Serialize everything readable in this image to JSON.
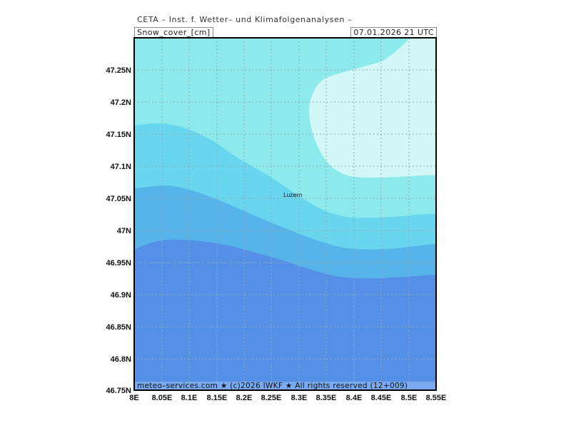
{
  "header": {
    "title": "CETA – Inst. f. Wetter– und Klimafolgenanalysen –",
    "field_label": "Snow_cover_[cm]",
    "valid_time": "07.01.2026  21 UTC"
  },
  "map": {
    "city": "Luzern",
    "lat_ticks": [
      "47.25N",
      "47.2N",
      "47.15N",
      "47.1N",
      "47.05N",
      "47N",
      "46.95N",
      "46.9N",
      "46.85N",
      "46.8N",
      "46.75N"
    ],
    "lon_ticks": [
      "8E",
      "8.05E",
      "8.1E",
      "8.15E",
      "8.2E",
      "8.25E",
      "8.3E",
      "8.35E",
      "8.4E",
      "8.45E",
      "8.5E",
      "8.55E"
    ],
    "footer": "meteo–services.com ★ (c)2026 IWKF ★ All rights reserved (12+009)",
    "colors": {
      "lightest": "#d2f7f7",
      "light": "#8ceaec",
      "medium": "#68d6ee",
      "deep": "#56b4ea",
      "deepest": "#548fe8",
      "footer_band": "#7aaaf0"
    }
  }
}
